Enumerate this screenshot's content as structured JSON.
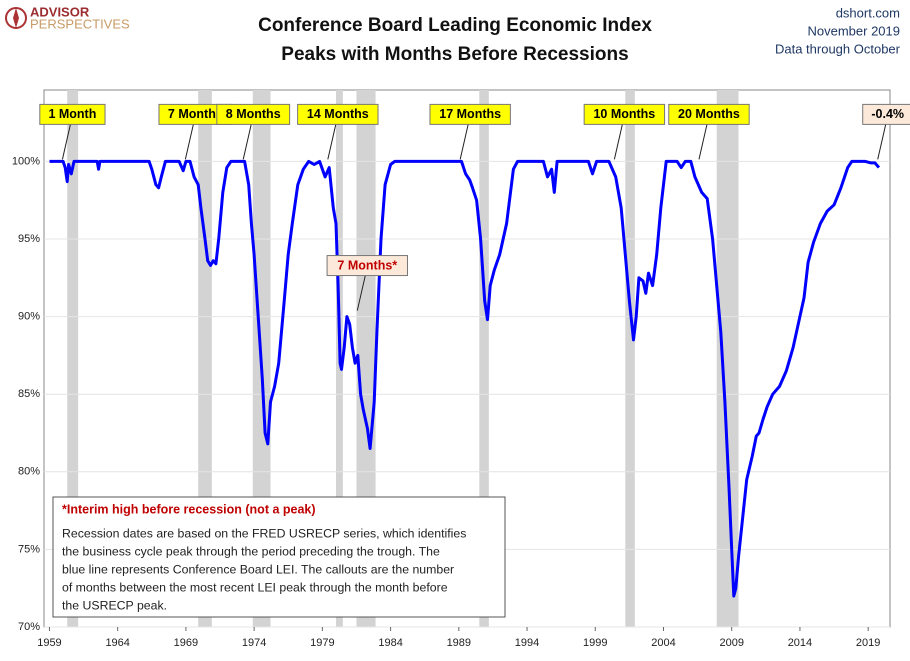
{
  "header": {
    "logo_top": "ADVISOR",
    "logo_bottom": "PERSPECTIVES",
    "site": "dshort.com",
    "date": "November 2019",
    "data_through": "Data through October"
  },
  "chart_data": {
    "type": "line",
    "title": [
      "Conference Board Leading Economic Index",
      "Peaks with Months Before Recessions"
    ],
    "color": "#0000ff",
    "grid": true,
    "recession_color": "#d3d3d3",
    "xlim": [
      1958.6,
      2020.6
    ],
    "xticks": [
      1959,
      1964,
      1969,
      1974,
      1979,
      1984,
      1989,
      1994,
      1999,
      2004,
      2009,
      2014,
      2019
    ],
    "ylim": [
      70,
      104.6
    ],
    "yticks": [
      {
        "value": 70,
        "label": "70%"
      },
      {
        "value": 75,
        "label": "75%"
      },
      {
        "value": 80,
        "label": "80%"
      },
      {
        "value": 85,
        "label": "85%"
      },
      {
        "value": 90,
        "label": "90%"
      },
      {
        "value": 95,
        "label": "95%"
      },
      {
        "value": 100,
        "label": "100%"
      }
    ],
    "recessions": [
      [
        1960.3,
        1961.1
      ],
      [
        1969.9,
        1970.9
      ],
      [
        1973.9,
        1975.2
      ],
      [
        1980.0,
        1980.5
      ],
      [
        1981.5,
        1982.9
      ],
      [
        1990.5,
        1991.2
      ],
      [
        2001.2,
        2001.9
      ],
      [
        2007.9,
        2009.5
      ]
    ],
    "x": [
      1959.0,
      1960.0,
      1960.15,
      1960.3,
      1960.4,
      1960.6,
      1960.8,
      1962.5,
      1962.6,
      1962.7,
      1966.3,
      1966.5,
      1966.8,
      1967.0,
      1967.2,
      1967.5,
      1968.5,
      1968.8,
      1969.0,
      1969.3,
      1969.6,
      1969.9,
      1970.1,
      1970.4,
      1970.6,
      1970.8,
      1971.0,
      1971.2,
      1971.4,
      1971.7,
      1972.0,
      1972.3,
      1973.3,
      1973.6,
      1973.8,
      1974.0,
      1974.3,
      1974.6,
      1974.8,
      1975.0,
      1975.2,
      1975.5,
      1975.8,
      1976.2,
      1976.5,
      1976.8,
      1977.2,
      1977.6,
      1978.0,
      1978.4,
      1978.8,
      1979.2,
      1979.5,
      1979.8,
      1980.0,
      1980.15,
      1980.3,
      1980.4,
      1980.6,
      1980.8,
      1981.0,
      1981.2,
      1981.4,
      1981.6,
      1981.8,
      1982.0,
      1982.3,
      1982.5,
      1982.8,
      1983.0,
      1983.3,
      1983.6,
      1984.0,
      1984.3,
      1989.2,
      1989.5,
      1989.8,
      1990.0,
      1990.3,
      1990.6,
      1990.9,
      1991.1,
      1991.3,
      1991.6,
      1992.0,
      1992.5,
      1993.0,
      1993.3,
      1995.2,
      1995.5,
      1995.8,
      1996.0,
      1996.2,
      1998.5,
      1998.8,
      1999.1,
      2000.0,
      2000.5,
      2000.9,
      2001.2,
      2001.5,
      2001.8,
      2002.0,
      2002.2,
      2002.5,
      2002.7,
      2002.9,
      2003.2,
      2003.5,
      2003.8,
      2004.2,
      2005.0,
      2005.3,
      2005.6,
      2006.0,
      2006.3,
      2006.8,
      2007.2,
      2007.6,
      2007.9,
      2008.2,
      2008.5,
      2008.8,
      2009.0,
      2009.15,
      2009.3,
      2009.5,
      2009.8,
      2010.1,
      2010.5,
      2010.8,
      2011.0,
      2011.3,
      2011.6,
      2012.0,
      2012.5,
      2013.0,
      2013.5,
      2014.0,
      2014.3,
      2014.6,
      2015.0,
      2015.5,
      2016.0,
      2016.5,
      2017.0,
      2017.5,
      2017.8,
      2018.8,
      2019.2,
      2019.5,
      2019.79
    ],
    "values": [
      100,
      100,
      99.6,
      98.7,
      99.8,
      99.2,
      100,
      100,
      99.5,
      100,
      100,
      99.5,
      98.5,
      98.3,
      99.0,
      100,
      100,
      99.4,
      100,
      100,
      99.0,
      98.5,
      97,
      95,
      93.6,
      93.3,
      93.6,
      93.4,
      95,
      98,
      99.6,
      100,
      100,
      98.5,
      96,
      94,
      90,
      86,
      82.5,
      81.8,
      84.5,
      85.5,
      87,
      91,
      94,
      96,
      98.5,
      99.5,
      100,
      99.8,
      100,
      99.0,
      99.6,
      97,
      96.0,
      92,
      87,
      86.6,
      88,
      90,
      89.5,
      88,
      87,
      87.5,
      85,
      84,
      82.8,
      81.5,
      84.5,
      89,
      95,
      98.5,
      99.8,
      100,
      100,
      99.2,
      98.8,
      98.3,
      97.5,
      95,
      91,
      89.8,
      92,
      93,
      94,
      96,
      99.5,
      100,
      100,
      99.0,
      99.5,
      98.0,
      100,
      100,
      99.2,
      100,
      100,
      99.0,
      97,
      94,
      91,
      88.5,
      90,
      92.5,
      92.3,
      91.5,
      92.8,
      92.0,
      94,
      97,
      100,
      100,
      99.6,
      100,
      100,
      99.0,
      98.0,
      97.6,
      95,
      92,
      89,
      84.5,
      79,
      75,
      72.0,
      72.5,
      74.5,
      77,
      79.5,
      81,
      82.3,
      82.5,
      83.4,
      84.2,
      85.0,
      85.5,
      86.5,
      88,
      90,
      91.2,
      93.5,
      94.8,
      96.0,
      96.8,
      97.2,
      98.3,
      99.6,
      100,
      100,
      99.9,
      99.9,
      99.6
    ],
    "annotations": [
      {
        "label": "1 Month",
        "x": 1959.95,
        "y": 100,
        "color": "#ffff00",
        "text_color": "#000000"
      },
      {
        "label": "7 Months",
        "x": 1968.96,
        "y": 100,
        "color": "#ffff00",
        "text_color": "#000000"
      },
      {
        "label": "8 Months",
        "x": 1973.2,
        "y": 100,
        "color": "#ffff00",
        "text_color": "#000000"
      },
      {
        "label": "14 Months",
        "x": 1979.4,
        "y": 100,
        "color": "#ffff00",
        "text_color": "#000000"
      },
      {
        "label": "17 Months",
        "x": 1989.1,
        "y": 100,
        "color": "#ffff00",
        "text_color": "#000000"
      },
      {
        "label": "10 Months",
        "x": 2000.4,
        "y": 100,
        "color": "#ffff00",
        "text_color": "#000000"
      },
      {
        "label": "20 Months",
        "x": 2006.6,
        "y": 100,
        "color": "#ffff00",
        "text_color": "#000000"
      },
      {
        "label": "7 Months*",
        "x": 1981.56,
        "y": 90.26,
        "color": "#fde9d9",
        "text_color": "#c00000"
      },
      {
        "label": "-0.4%",
        "x": 2019.7,
        "y": 100,
        "color": "#fde9d9",
        "text_color": "#000000"
      }
    ],
    "notes": {
      "heading": "*Interim high before recession (not a peak)",
      "lines": [
        "Recession dates are based on the FRED USRECP series, which identifies",
        "the business cycle peak through the period preceding the trough. The",
        "blue line represents Conference Board LEI. The callouts are the number",
        "of months between the most recent LEI peak through the month  before",
        "the USRECP peak."
      ]
    }
  }
}
